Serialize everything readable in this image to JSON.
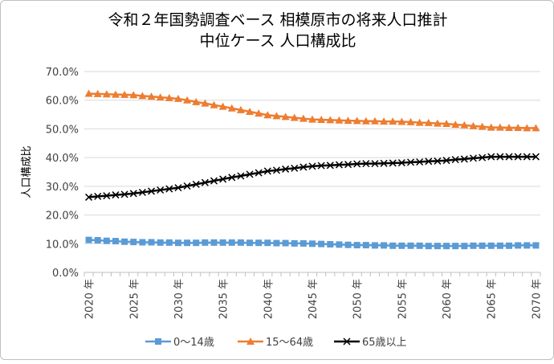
{
  "chart_data": {
    "type": "line",
    "title": [
      "令和２年国勢調査ベース 相模原市の将来人口推計",
      "中位ケース 人口構成比"
    ],
    "ylabel": "人口構成比",
    "xlabel": "",
    "ylim": [
      0,
      70
    ],
    "yticks": [
      "0.0%",
      "10.0%",
      "20.0%",
      "30.0%",
      "40.0%",
      "50.0%",
      "60.0%",
      "70.0%"
    ],
    "x_start": 2020,
    "x_end": 2070,
    "xtick_labels": [
      "2020 年",
      "2025 年",
      "2030 年",
      "2035 年",
      "2040 年",
      "2045 年",
      "2050 年",
      "2055 年",
      "2060 年",
      "2065 年",
      "2070 年"
    ],
    "grid": true,
    "legend_position": "bottom",
    "series": [
      {
        "name": "0～14歳",
        "color": "#5b9bd5",
        "marker": "square",
        "values": [
          11.3,
          11.2,
          11.0,
          10.9,
          10.7,
          10.6,
          10.5,
          10.5,
          10.4,
          10.4,
          10.3,
          10.3,
          10.3,
          10.4,
          10.4,
          10.4,
          10.4,
          10.4,
          10.3,
          10.3,
          10.3,
          10.2,
          10.2,
          10.1,
          10.1,
          10.0,
          9.9,
          9.8,
          9.7,
          9.6,
          9.5,
          9.5,
          9.4,
          9.4,
          9.3,
          9.3,
          9.3,
          9.3,
          9.2,
          9.2,
          9.2,
          9.2,
          9.2,
          9.3,
          9.3,
          9.3,
          9.3,
          9.3,
          9.4,
          9.4,
          9.4
        ]
      },
      {
        "name": "15～64歳",
        "color": "#ed7d31",
        "marker": "triangle",
        "values": [
          62.3,
          62.2,
          62.1,
          62.0,
          61.9,
          61.8,
          61.5,
          61.3,
          61.0,
          60.8,
          60.5,
          60.0,
          59.4,
          58.9,
          58.3,
          57.8,
          57.2,
          56.6,
          56.0,
          55.4,
          54.8,
          54.5,
          54.2,
          53.9,
          53.6,
          53.3,
          53.2,
          53.1,
          53.0,
          52.9,
          52.8,
          52.7,
          52.7,
          52.6,
          52.6,
          52.5,
          52.4,
          52.2,
          52.1,
          51.9,
          51.8,
          51.5,
          51.3,
          51.0,
          50.8,
          50.5,
          50.5,
          50.4,
          50.4,
          50.3,
          50.3
        ]
      },
      {
        "name": "65歳以上",
        "color": "#000000",
        "marker": "x",
        "values": [
          26.2,
          26.5,
          26.7,
          27.0,
          27.2,
          27.5,
          27.9,
          28.3,
          28.7,
          29.1,
          29.5,
          30.1,
          30.7,
          31.3,
          31.9,
          32.5,
          33.1,
          33.6,
          34.2,
          34.7,
          35.3,
          35.6,
          36.0,
          36.3,
          36.7,
          37.0,
          37.2,
          37.3,
          37.5,
          37.6,
          37.8,
          37.9,
          37.9,
          38.0,
          38.1,
          38.2,
          38.4,
          38.5,
          38.7,
          38.8,
          39.0,
          39.3,
          39.5,
          39.8,
          40.0,
          40.3,
          40.3,
          40.3,
          40.3,
          40.3,
          40.3
        ]
      }
    ]
  }
}
